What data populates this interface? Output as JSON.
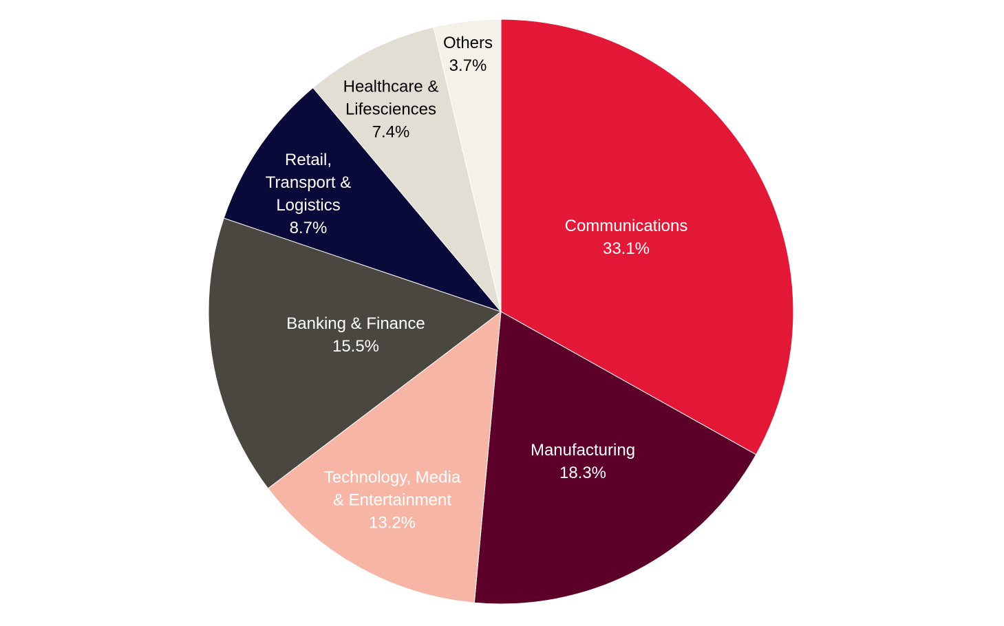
{
  "chart_data": {
    "type": "pie",
    "start_angle_deg": 0,
    "direction": "clockwise",
    "legend": "none",
    "slices": [
      {
        "label_lines": [
          "Communications"
        ],
        "value_label": "33.1%",
        "value": 33.1,
        "color": "#E31837",
        "text_color": "#FFFFFF"
      },
      {
        "label_lines": [
          "Manufacturing"
        ],
        "value_label": "18.3%",
        "value": 18.3,
        "color": "#5C0029",
        "text_color": "#FFFFFF"
      },
      {
        "label_lines": [
          "Technology, Media",
          "& Entertainment"
        ],
        "value_label": "13.2%",
        "value": 13.2,
        "color": "#F7B5A6",
        "text_color": "#FFFFFF"
      },
      {
        "label_lines": [
          "Banking & Finance"
        ],
        "value_label": "15.5%",
        "value": 15.5,
        "color": "#4A4640",
        "text_color": "#FFFFFF"
      },
      {
        "label_lines": [
          "Retail,",
          "Transport &",
          "Logistics"
        ],
        "value_label": "8.7%",
        "value": 8.7,
        "color": "#0A0A3A",
        "text_color": "#FFFFFF"
      },
      {
        "label_lines": [
          "Healthcare &",
          "Lifesciences"
        ],
        "value_label": "7.4%",
        "value": 7.4,
        "color": "#E3DED3",
        "text_color": "#000000"
      },
      {
        "label_lines": [
          "Others"
        ],
        "value_label": "3.7%",
        "value": 3.7,
        "color": "#F4F1EA",
        "text_color": "#000000"
      }
    ]
  }
}
